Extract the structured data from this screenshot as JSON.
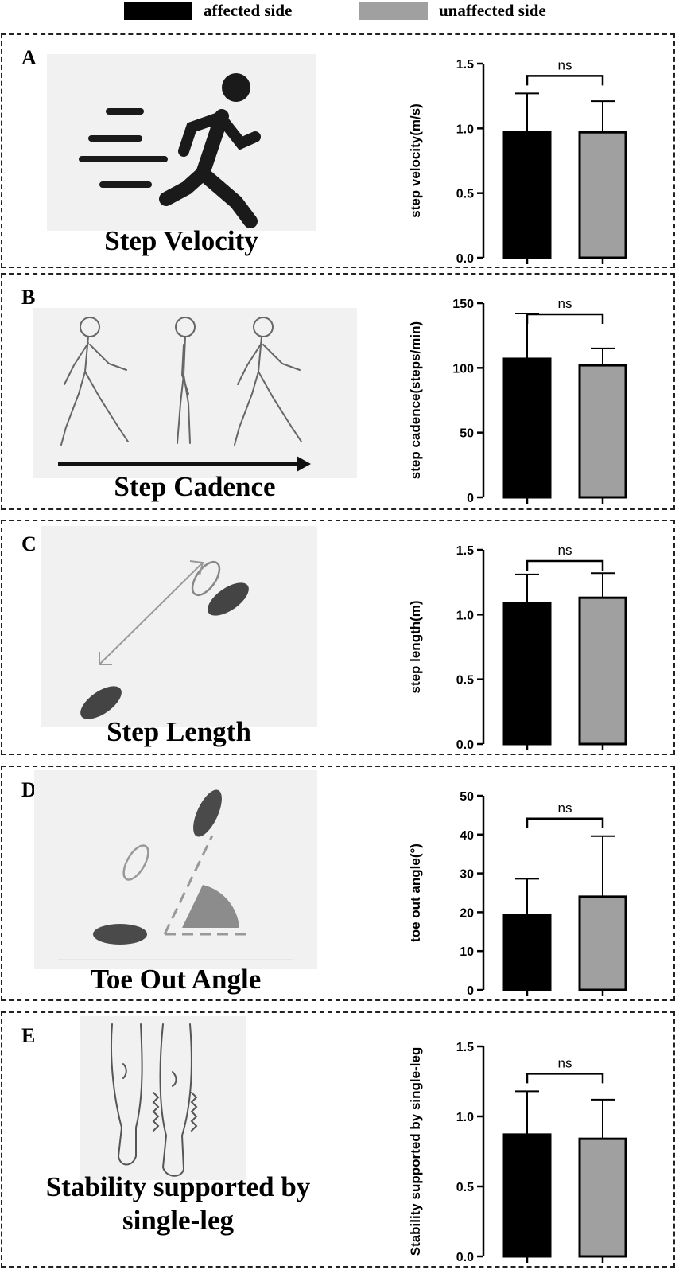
{
  "legend": {
    "affected_label": "affected side",
    "unaffected_label": "unaffected side",
    "affected_color": "#000000",
    "unaffected_color": "#a0a0a0"
  },
  "panels": [
    {
      "letter": "A",
      "caption": "Step Velocity",
      "illustration": "running-person-icon"
    },
    {
      "letter": "B",
      "caption": "Step Cadence",
      "illustration": "walking-sequence-icon"
    },
    {
      "letter": "C",
      "caption": "Step Length",
      "illustration": "footprints-step-length-icon"
    },
    {
      "letter": "D",
      "caption": "Toe Out Angle",
      "illustration": "footprints-toe-angle-icon"
    },
    {
      "letter": "E",
      "caption": "Stability supported by\nsingle-leg",
      "illustration": "single-leg-stance-icon"
    }
  ],
  "chart_data": [
    {
      "type": "bar",
      "ylabel": "step velocity(m/s)",
      "ylim": [
        0,
        1.5
      ],
      "yticks": [
        "0.0",
        "0.5",
        "1.0",
        "1.5"
      ],
      "categories": [
        "affected side",
        "unaffected side"
      ],
      "values": [
        0.97,
        0.97
      ],
      "errors": [
        0.3,
        0.24
      ],
      "significance": "ns"
    },
    {
      "type": "bar",
      "ylabel": "step cadence(steps/min)",
      "ylim": [
        0,
        150
      ],
      "yticks": [
        "0",
        "50",
        "100",
        "150"
      ],
      "categories": [
        "affected side",
        "unaffected side"
      ],
      "values": [
        107,
        102
      ],
      "errors": [
        35,
        13
      ],
      "significance": "ns"
    },
    {
      "type": "bar",
      "ylabel": "step length(m)",
      "ylim": [
        0,
        1.5
      ],
      "yticks": [
        "0.0",
        "0.5",
        "1.0",
        "1.5"
      ],
      "categories": [
        "affected side",
        "unaffected side"
      ],
      "values": [
        1.09,
        1.13
      ],
      "errors": [
        0.22,
        0.19
      ],
      "significance": "ns"
    },
    {
      "type": "bar",
      "ylabel": "toe out angle(°)",
      "ylim": [
        0,
        50
      ],
      "yticks": [
        "0",
        "10",
        "20",
        "30",
        "40",
        "50"
      ],
      "categories": [
        "affected side",
        "unaffected side"
      ],
      "values": [
        19.2,
        24.0
      ],
      "errors": [
        9.4,
        15.6
      ],
      "significance": "ns"
    },
    {
      "type": "bar",
      "ylabel": "Stability supported by single-leg",
      "ylim": [
        0,
        1.5
      ],
      "yticks": [
        "0.0",
        "0.5",
        "1.0",
        "1.5"
      ],
      "categories": [
        "affected side",
        "unaffected side"
      ],
      "values": [
        0.87,
        0.84
      ],
      "errors": [
        0.31,
        0.28
      ],
      "significance": "ns"
    }
  ]
}
